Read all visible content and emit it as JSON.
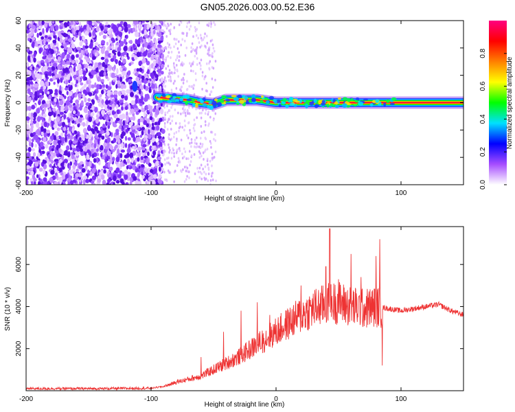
{
  "title": "GN05.2026.003.00.52.E36",
  "chart_data": [
    {
      "type": "heatmap",
      "xlabel": "Height of straight line (km)",
      "ylabel": "Frequency (Hz)",
      "xlim": [
        -200,
        150
      ],
      "ylim": [
        -60,
        60
      ],
      "x_ticks": [
        -200,
        -100,
        0,
        100
      ],
      "y_ticks": [
        -60,
        -40,
        -20,
        0,
        20,
        40,
        60
      ],
      "grid": false,
      "colorbar": {
        "label": "Normalized spectral amplitude",
        "range": [
          0,
          1
        ],
        "ticks": [
          "0.0",
          "0.2",
          "0.4",
          "0.6",
          "0.8"
        ],
        "colors": [
          "#ffffff",
          "#a64dff",
          "#0000ff",
          "#00e0ff",
          "#00ff00",
          "#ffff00",
          "#ff8000",
          "#ff0000",
          "#ff0080"
        ]
      },
      "features": {
        "noise_region_x": [
          -200,
          -90
        ],
        "faint_noise_region_x": [
          -90,
          -48
        ],
        "carrier_track": [
          {
            "x": -95,
            "y": 4
          },
          {
            "x": -85,
            "y": 3
          },
          {
            "x": -70,
            "y": 2
          },
          {
            "x": -60,
            "y": 0
          },
          {
            "x": -50,
            "y": -1
          },
          {
            "x": -40,
            "y": 2
          },
          {
            "x": -30,
            "y": 2
          },
          {
            "x": -15,
            "y": 2
          },
          {
            "x": 0,
            "y": 0
          },
          {
            "x": 50,
            "y": 0
          },
          {
            "x": 100,
            "y": 0
          },
          {
            "x": 150,
            "y": 0
          }
        ],
        "isolated_blob": {
          "x": -113,
          "y": 12
        }
      }
    },
    {
      "type": "line",
      "xlabel": "Height of straight line (km)",
      "ylabel": "SNR (10 * v/v)",
      "xlim": [
        -200,
        150
      ],
      "ylim": [
        0,
        7800
      ],
      "x_ticks": [
        -200,
        -100,
        0,
        100
      ],
      "y_ticks": [
        2000,
        4000,
        6000
      ],
      "grid": false,
      "series": [
        {
          "color": "#ee3333",
          "points": [
            [
              -200,
              100
            ],
            [
              -180,
              100
            ],
            [
              -160,
              100
            ],
            [
              -140,
              100
            ],
            [
              -120,
              110
            ],
            [
              -100,
              120
            ],
            [
              -90,
              200
            ],
            [
              -80,
              400
            ],
            [
              -70,
              550
            ],
            [
              -60,
              700
            ],
            [
              -50,
              1000
            ],
            [
              -40,
              1300
            ],
            [
              -30,
              1600
            ],
            [
              -20,
              2000
            ],
            [
              -10,
              2400
            ],
            [
              0,
              2800
            ],
            [
              10,
              3200
            ],
            [
              20,
              3600
            ],
            [
              30,
              3900
            ],
            [
              40,
              4100
            ],
            [
              50,
              4200
            ],
            [
              60,
              4000
            ],
            [
              70,
              3900
            ],
            [
              80,
              4000
            ],
            [
              90,
              3900
            ],
            [
              100,
              3800
            ],
            [
              110,
              3900
            ],
            [
              120,
              4000
            ],
            [
              130,
              4100
            ],
            [
              140,
              3800
            ],
            [
              150,
              3600
            ]
          ],
          "spikes": [
            [
              -60,
              1600
            ],
            [
              -42,
              2800
            ],
            [
              -28,
              3800
            ],
            [
              -15,
              4200
            ],
            [
              -12,
              2000
            ],
            [
              -5,
              3600
            ],
            [
              20,
              5000
            ],
            [
              40,
              5900
            ],
            [
              43,
              7700
            ],
            [
              50,
              5300
            ],
            [
              60,
              6500
            ],
            [
              68,
              5400
            ],
            [
              80,
              6400
            ],
            [
              83,
              7200
            ],
            [
              85,
              1200
            ]
          ]
        }
      ]
    }
  ]
}
